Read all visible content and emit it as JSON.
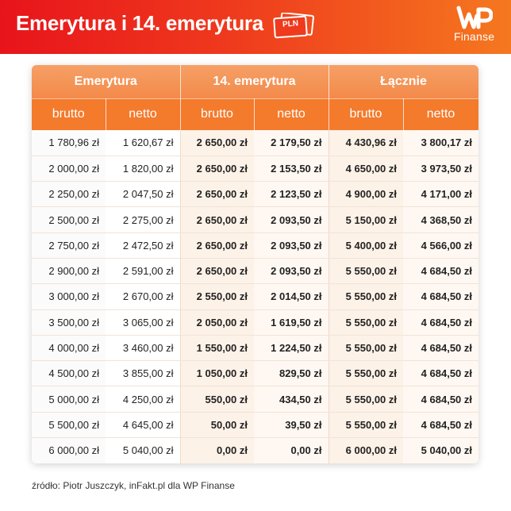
{
  "header": {
    "title": "Emerytura i 14. emerytura",
    "pln_icon_label": "PLN",
    "brand_mark": "WP",
    "brand_name": "Finanse",
    "colors": {
      "gradient_start": "#e8141b",
      "gradient_end": "#f5781f"
    }
  },
  "table": {
    "groups": [
      "Emerytura",
      "14. emerytura",
      "Łącznie"
    ],
    "subheaders": [
      "brutto",
      "netto",
      "brutto",
      "netto",
      "brutto",
      "netto"
    ],
    "rows": [
      [
        "1 780,96 zł",
        "1 620,67 zł",
        "2 650,00 zł",
        "2 179,50 zł",
        "4 430,96 zł",
        "3 800,17 zł"
      ],
      [
        "2 000,00 zł",
        "1 820,00 zł",
        "2 650,00 zł",
        "2 153,50 zł",
        "4 650,00 zł",
        "3 973,50 zł"
      ],
      [
        "2 250,00 zł",
        "2 047,50 zł",
        "2 650,00 zł",
        "2 123,50 zł",
        "4 900,00 zł",
        "4 171,00 zł"
      ],
      [
        "2 500,00 zł",
        "2 275,00 zł",
        "2 650,00 zł",
        "2 093,50 zł",
        "5 150,00 zł",
        "4 368,50 zł"
      ],
      [
        "2 750,00 zł",
        "2 472,50 zł",
        "2 650,00 zł",
        "2 093,50 zł",
        "5 400,00 zł",
        "4 566,00 zł"
      ],
      [
        "2 900,00 zł",
        "2 591,00 zł",
        "2 650,00 zł",
        "2 093,50 zł",
        "5 550,00 zł",
        "4 684,50 zł"
      ],
      [
        "3 000,00 zł",
        "2 670,00 zł",
        "2 550,00 zł",
        "2 014,50 zł",
        "5 550,00 zł",
        "4 684,50 zł"
      ],
      [
        "3 500,00 zł",
        "3 065,00 zł",
        "2 050,00 zł",
        "1 619,50 zł",
        "5 550,00 zł",
        "4 684,50 zł"
      ],
      [
        "4 000,00 zł",
        "3 460,00 zł",
        "1 550,00 zł",
        "1 224,50 zł",
        "5 550,00 zł",
        "4 684,50 zł"
      ],
      [
        "4 500,00 zł",
        "3 855,00 zł",
        "1 050,00 zł",
        "829,50 zł",
        "5 550,00 zł",
        "4 684,50 zł"
      ],
      [
        "5 000,00 zł",
        "4 250,00 zł",
        "550,00 zł",
        "434,50 zł",
        "5 550,00 zł",
        "4 684,50 zł"
      ],
      [
        "5 500,00 zł",
        "4 645,00 zł",
        "50,00 zł",
        "39,50 zł",
        "5 550,00 zł",
        "4 684,50 zł"
      ],
      [
        "6 000,00 zł",
        "5 040,00 zł",
        "0,00 zł",
        "0,00 zł",
        "6 000,00 zł",
        "5 040,00 zł"
      ]
    ]
  },
  "footer": {
    "source": "źródło: Piotr Juszczyk, inFakt.pl dla WP Finanse"
  }
}
